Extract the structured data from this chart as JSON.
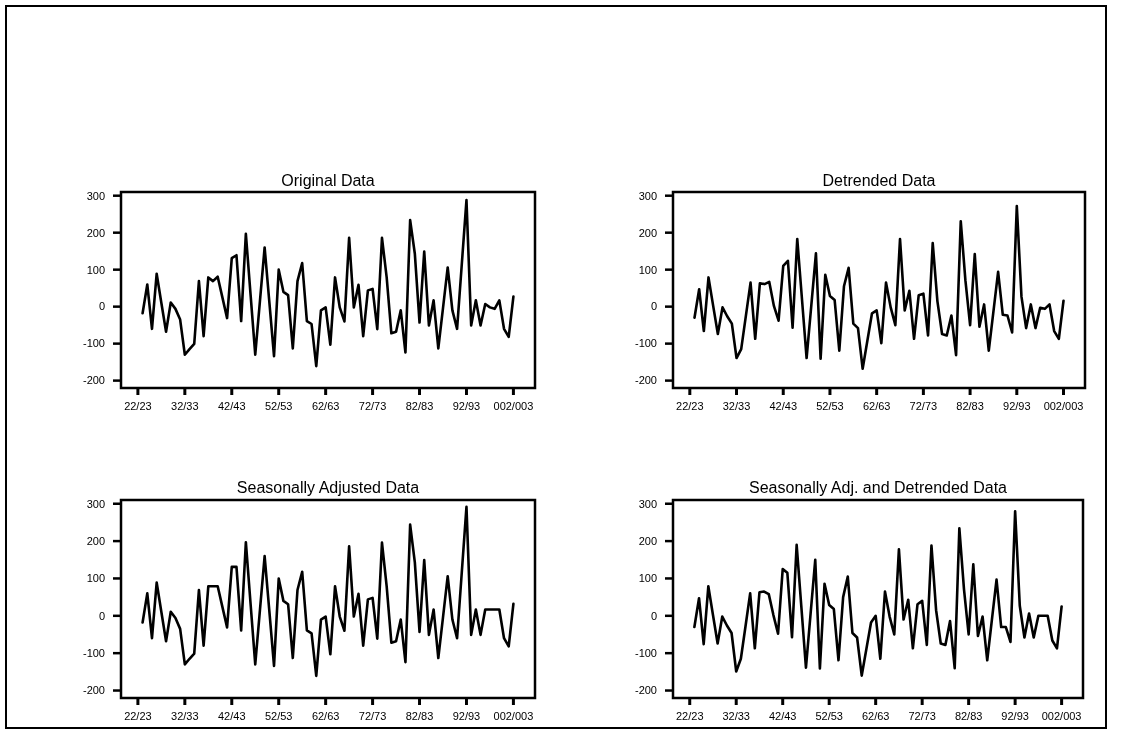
{
  "chart_data": [
    {
      "type": "line",
      "title": "Original Data",
      "categories": [
        "22/23",
        null,
        null,
        null,
        null,
        null,
        null,
        null,
        null,
        null,
        "32/33",
        null,
        null,
        null,
        null,
        null,
        null,
        null,
        null,
        null,
        "42/43",
        null,
        null,
        null,
        null,
        null,
        null,
        null,
        null,
        null,
        "52/53",
        null,
        null,
        null,
        null,
        null,
        null,
        null,
        null,
        null,
        "62/63",
        null,
        null,
        null,
        null,
        null,
        null,
        null,
        null,
        null,
        "72/73",
        null,
        null,
        null,
        null,
        null,
        null,
        null,
        null,
        null,
        "82/83",
        null,
        null,
        null,
        null,
        null,
        null,
        null,
        null,
        null,
        "92/93",
        null,
        null,
        null,
        null,
        null,
        null,
        null,
        null,
        null,
        "002/003"
      ],
      "ylim": [
        -220,
        310
      ],
      "yticks": [
        -200,
        -100,
        0,
        100,
        200,
        300
      ],
      "series": [
        {
          "color": "#000000",
          "values": [
            null,
            -18,
            60,
            -60,
            89,
            10,
            -68,
            11,
            -6,
            -35,
            -130,
            -115,
            -101,
            69,
            -80,
            79,
            69,
            81,
            25,
            -31,
            131,
            139,
            -39,
            197,
            33,
            -130,
            15,
            160,
            13,
            -134,
            100,
            40,
            31,
            -113,
            69,
            118,
            -39,
            -47,
            -161,
            -10,
            -2,
            -103,
            79,
            -2,
            -40,
            186,
            -2,
            59,
            -80,
            44,
            48,
            -61,
            186,
            79,
            -72,
            -68,
            -10,
            -124,
            234,
            143,
            -43,
            149,
            -51,
            17,
            -113,
            -4,
            106,
            -10,
            -60,
            114,
            288,
            -51,
            17,
            -51,
            7,
            -2,
            -6,
            17,
            -60,
            -82,
            27
          ]
        }
      ]
    },
    {
      "type": "line",
      "title": "Detrended Data",
      "categories": [
        "22/23",
        null,
        null,
        null,
        null,
        null,
        null,
        null,
        null,
        null,
        "32/33",
        null,
        null,
        null,
        null,
        null,
        null,
        null,
        null,
        null,
        "42/43",
        null,
        null,
        null,
        null,
        null,
        null,
        null,
        null,
        null,
        "52/53",
        null,
        null,
        null,
        null,
        null,
        null,
        null,
        null,
        null,
        "62/63",
        null,
        null,
        null,
        null,
        null,
        null,
        null,
        null,
        null,
        "72/73",
        null,
        null,
        null,
        null,
        null,
        null,
        null,
        null,
        null,
        "82/83",
        null,
        null,
        null,
        null,
        null,
        null,
        null,
        null,
        null,
        "92/93",
        null,
        null,
        null,
        null,
        null,
        null,
        null,
        null,
        null,
        "002/003"
      ],
      "ylim": [
        -220,
        310
      ],
      "yticks": [
        -200,
        -100,
        0,
        100,
        200,
        300
      ],
      "series": [
        {
          "color": "#000000",
          "values": [
            null,
            -30,
            47,
            -66,
            79,
            2,
            -74,
            -2,
            -26,
            -46,
            -139,
            -115,
            -25,
            65,
            -87,
            63,
            61,
            67,
            2,
            -38,
            110,
            124,
            -57,
            183,
            22,
            -139,
            2,
            144,
            -141,
            86,
            29,
            18,
            -119,
            55,
            105,
            -46,
            -58,
            -168,
            -93,
            -18,
            -10,
            -99,
            65,
            -2,
            -50,
            183,
            -10,
            43,
            -87,
            31,
            35,
            -78,
            172,
            15,
            -74,
            -78,
            -24,
            -131,
            231,
            71,
            -50,
            142,
            -54,
            6,
            -119,
            -13,
            94,
            -22,
            -24,
            -70,
            272,
            27,
            -58,
            6,
            -58,
            -3,
            -6,
            6,
            -66,
            -87,
            16
          ]
        }
      ]
    },
    {
      "type": "line",
      "title": "Seasonally Adjusted Data",
      "categories": [
        "22/23",
        null,
        null,
        null,
        null,
        null,
        null,
        null,
        null,
        null,
        "32/33",
        null,
        null,
        null,
        null,
        null,
        null,
        null,
        null,
        null,
        "42/43",
        null,
        null,
        null,
        null,
        null,
        null,
        null,
        null,
        null,
        "52/53",
        null,
        null,
        null,
        null,
        null,
        null,
        null,
        null,
        null,
        "62/63",
        null,
        null,
        null,
        null,
        null,
        null,
        null,
        null,
        null,
        "72/73",
        null,
        null,
        null,
        null,
        null,
        null,
        null,
        null,
        null,
        "82/83",
        null,
        null,
        null,
        null,
        null,
        null,
        null,
        null,
        null,
        "92/93",
        null,
        null,
        null,
        null,
        null,
        null,
        null,
        null,
        null,
        "002/003"
      ],
      "ylim": [
        -220,
        310
      ],
      "yticks": [
        -200,
        -100,
        0,
        100,
        200,
        300
      ],
      "series": [
        {
          "color": "#000000",
          "values": [
            null,
            -18,
            60,
            -60,
            89,
            10,
            -68,
            11,
            -6,
            -35,
            -130,
            -115,
            -101,
            69,
            -80,
            79,
            79,
            79,
            24,
            -31,
            131,
            131,
            -39,
            197,
            33,
            -130,
            15,
            160,
            13,
            -134,
            100,
            40,
            31,
            -113,
            69,
            118,
            -39,
            -47,
            -161,
            -10,
            -2,
            -103,
            79,
            -2,
            -40,
            186,
            -2,
            59,
            -80,
            44,
            48,
            -61,
            196,
            79,
            -72,
            -68,
            -10,
            -124,
            244,
            143,
            -43,
            149,
            -51,
            17,
            -113,
            -4,
            106,
            -10,
            -60,
            116,
            292,
            -51,
            17,
            -51,
            17,
            17,
            17,
            17,
            -60,
            -82,
            32
          ]
        }
      ]
    },
    {
      "type": "line",
      "title": "Seasonally Adj. and Detrended Data",
      "categories": [
        "22/23",
        null,
        null,
        null,
        null,
        null,
        null,
        null,
        null,
        null,
        "32/33",
        null,
        null,
        null,
        null,
        null,
        null,
        null,
        null,
        null,
        "42/43",
        null,
        null,
        null,
        null,
        null,
        null,
        null,
        null,
        null,
        "52/53",
        null,
        null,
        null,
        null,
        null,
        null,
        null,
        null,
        null,
        "62/63",
        null,
        null,
        null,
        null,
        null,
        null,
        null,
        null,
        null,
        "72/73",
        null,
        null,
        null,
        null,
        null,
        null,
        null,
        null,
        null,
        "82/83",
        null,
        null,
        null,
        null,
        null,
        null,
        null,
        null,
        null,
        "92/93",
        null,
        null,
        null,
        null,
        null,
        null,
        null,
        null,
        null,
        "002/003"
      ],
      "ylim": [
        -220,
        310
      ],
      "yticks": [
        -200,
        -100,
        0,
        100,
        200,
        300
      ],
      "series": [
        {
          "color": "#000000",
          "values": [
            null,
            -30,
            47,
            -76,
            79,
            2,
            -74,
            -2,
            -26,
            -46,
            -149,
            -115,
            -28,
            60,
            -87,
            63,
            65,
            58,
            2,
            -48,
            125,
            115,
            -57,
            190,
            26,
            -139,
            6,
            150,
            -141,
            86,
            29,
            18,
            -119,
            50,
            105,
            -46,
            -58,
            -160,
            -89,
            -18,
            0,
            -115,
            65,
            -2,
            -50,
            178,
            -10,
            43,
            -87,
            31,
            40,
            -78,
            188,
            15,
            -74,
            -78,
            -14,
            -140,
            234,
            71,
            -50,
            138,
            -54,
            -2,
            -119,
            -11,
            97,
            -30,
            -30,
            -70,
            280,
            27,
            -58,
            6,
            -58,
            0,
            0,
            0,
            -66,
            -87,
            25
          ]
        }
      ]
    }
  ]
}
